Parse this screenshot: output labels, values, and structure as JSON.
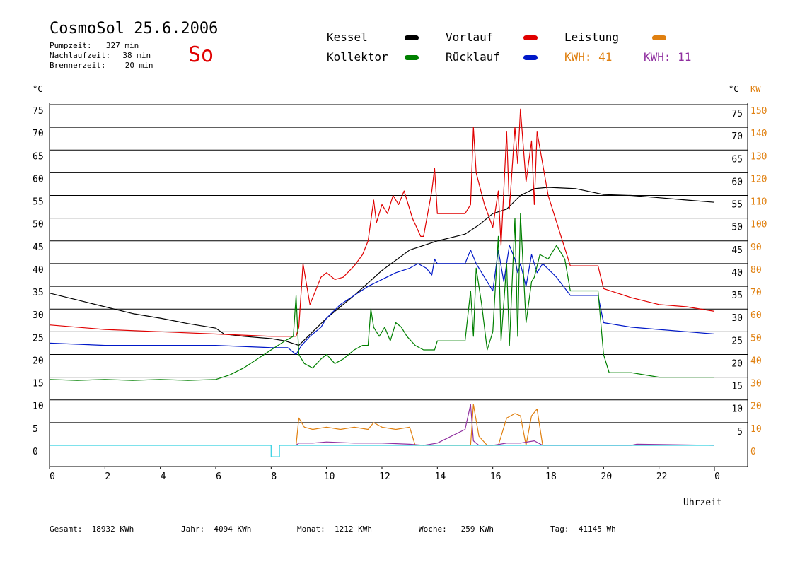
{
  "header": {
    "title": "CosmoSol 25.6.2006",
    "day": "So",
    "stats": [
      {
        "label": "Pumpzeit:",
        "value": "327 min"
      },
      {
        "label": "Nachlaufzeit:",
        "value": "38 min"
      },
      {
        "label": "Brennerzeit:",
        "value": "20 min"
      }
    ]
  },
  "legend": {
    "kessel": "Kessel",
    "kollektor": "Kollektor",
    "vorlauf": "Vorlauf",
    "ruecklauf": "Rücklauf",
    "leistung": "Leistung",
    "kwh1": "KWH: 41",
    "kwh2": "KWH: 11"
  },
  "colors": {
    "kessel": "#000000",
    "kollektor": "#008000",
    "vorlauf": "#e00000",
    "ruecklauf": "#0018c8",
    "leistung": "#e08010",
    "kwh2": "#9030a0",
    "cyan": "#30d0e0"
  },
  "footer": [
    {
      "label": "Gesamt:",
      "value": "18932 KWh"
    },
    {
      "label": "Jahr:",
      "value": "4094 KWh"
    },
    {
      "label": "Monat:",
      "value": "1212 KWh"
    },
    {
      "label": "Woche:",
      "value": "259 KWh"
    },
    {
      "label": "Tag:",
      "value": "41145 Wh"
    }
  ],
  "chart_data": {
    "type": "line",
    "xlabel": "Uhrzeit",
    "ylabel_left": "°C",
    "ylabel_right_temp": "°C",
    "ylabel_right_power": "KW",
    "xlim": [
      0,
      24
    ],
    "ylim": [
      0,
      75
    ],
    "power_lim": [
      0,
      150
    ],
    "x_ticks": [
      "0",
      "2",
      "4",
      "6",
      "8",
      "10",
      "12",
      "14",
      "16",
      "18",
      "20",
      "22",
      "0"
    ],
    "y_ticks_left": [
      0,
      5,
      10,
      15,
      20,
      25,
      30,
      35,
      40,
      45,
      50,
      55,
      60,
      65,
      70,
      75
    ],
    "y_ticks_right": [
      5,
      10,
      15,
      20,
      25,
      30,
      35,
      40,
      45,
      50,
      55,
      60,
      65,
      70,
      75
    ],
    "power_ticks": [
      0,
      10,
      20,
      30,
      40,
      50,
      60,
      70,
      80,
      90,
      100,
      110,
      120,
      130,
      140,
      150
    ],
    "grid": "horizontal",
    "series": [
      {
        "name": "Kessel",
        "key": "kessel",
        "x": [
          0,
          1,
          2,
          3,
          4,
          5,
          6,
          6.3,
          7,
          8,
          8.5,
          9,
          9.5,
          10,
          11,
          12,
          13,
          14,
          15,
          15.5,
          16,
          16.5,
          17,
          17.5,
          18,
          19,
          20,
          21,
          22,
          23,
          24
        ],
        "y": [
          33.5,
          32,
          30.5,
          29,
          28,
          26.8,
          25.8,
          24.5,
          24,
          23.5,
          23,
          22,
          25,
          28,
          33,
          38.5,
          43,
          45,
          46.5,
          48.5,
          51,
          52,
          55,
          56.5,
          56.8,
          56.5,
          55.2,
          55,
          54.5,
          54,
          53.5
        ]
      },
      {
        "name": "Vorlauf",
        "key": "vorlauf",
        "x": [
          0,
          2,
          4,
          6,
          8,
          8.9,
          9.0,
          9.15,
          9.4,
          9.6,
          9.8,
          10,
          10.3,
          10.6,
          11,
          11.3,
          11.5,
          11.7,
          11.8,
          12,
          12.2,
          12.4,
          12.6,
          12.8,
          13.1,
          13.4,
          13.5,
          13.8,
          13.9,
          14,
          14.5,
          15,
          15.2,
          15.3,
          15.4,
          15.7,
          16,
          16.2,
          16.3,
          16.5,
          16.6,
          16.8,
          16.9,
          17,
          17.2,
          17.4,
          17.5,
          17.6,
          18,
          18.8,
          19.8,
          20,
          21,
          22,
          23,
          24
        ],
        "y": [
          26.5,
          25.5,
          25,
          24.5,
          24,
          24,
          26,
          40,
          31,
          34,
          37,
          38,
          36.5,
          37,
          39.5,
          42,
          45,
          54,
          49,
          53,
          51,
          55,
          53,
          56,
          50,
          46,
          46,
          56,
          61,
          51,
          51,
          51,
          53,
          70,
          60,
          53,
          48,
          56,
          44,
          69,
          52,
          70,
          62,
          74,
          58,
          67,
          53,
          69,
          55,
          39.5,
          39.5,
          34.5,
          32.5,
          31,
          30.5,
          29.5
        ]
      },
      {
        "name": "Rücklauf",
        "key": "ruecklauf",
        "x": [
          0,
          2,
          4,
          6,
          8,
          8.6,
          8.9,
          9.1,
          9.4,
          9.8,
          10,
          10.5,
          11,
          11.5,
          12,
          12.5,
          13,
          13.3,
          13.6,
          13.8,
          13.9,
          14,
          15,
          15.2,
          15.4,
          15.7,
          16,
          16.2,
          16.4,
          16.6,
          16.8,
          16.9,
          17,
          17.2,
          17.4,
          17.6,
          17.8,
          18.3,
          18.8,
          19.8,
          20,
          21,
          22,
          23,
          24
        ],
        "y": [
          22.5,
          22,
          22,
          22,
          21.5,
          21.5,
          20,
          22,
          24,
          26,
          28,
          31,
          33,
          35,
          36.5,
          38,
          39,
          40,
          39,
          37.5,
          41,
          40,
          40,
          43,
          40,
          37,
          34,
          43,
          36,
          44,
          41,
          38,
          40,
          35,
          42,
          38,
          40,
          37,
          33,
          33,
          27,
          26,
          25.5,
          25,
          24.5
        ]
      },
      {
        "name": "Kollektor",
        "key": "kollektor",
        "x": [
          0,
          1,
          2,
          3,
          4,
          5,
          6,
          6.5,
          7,
          7.5,
          8,
          8.5,
          8.8,
          8.9,
          9.0,
          9.2,
          9.5,
          9.8,
          10,
          10.3,
          10.6,
          11,
          11.3,
          11.5,
          11.6,
          11.7,
          11.9,
          12.1,
          12.3,
          12.5,
          12.7,
          12.9,
          13.2,
          13.5,
          13.8,
          13.9,
          14,
          15,
          15.2,
          15.3,
          15.4,
          15.6,
          15.8,
          16,
          16.2,
          16.3,
          16.5,
          16.6,
          16.8,
          16.9,
          17,
          17.2,
          17.4,
          17.5,
          17.7,
          18,
          18.3,
          18.6,
          18.8,
          19.8,
          20,
          20.2,
          21,
          22,
          23,
          24
        ],
        "y": [
          14.5,
          14.3,
          14.5,
          14.3,
          14.5,
          14.3,
          14.5,
          15.5,
          17,
          19,
          21,
          23,
          24,
          33,
          20,
          18,
          17,
          19,
          20,
          18,
          19,
          21,
          22,
          22,
          30,
          26,
          24,
          26,
          23,
          27,
          26,
          24,
          22,
          21,
          21,
          21,
          23,
          23,
          34,
          24,
          39,
          31,
          21,
          25,
          46,
          23,
          40,
          22,
          50,
          24,
          51,
          27,
          36,
          37,
          42,
          41,
          44,
          41,
          34,
          34,
          20,
          16,
          16,
          15,
          15,
          15
        ]
      },
      {
        "name": "Leistung",
        "key": "leistung",
        "unit": "KW",
        "x": [
          8.9,
          9.0,
          9.2,
          9.5,
          10,
          10.5,
          11,
          11.5,
          11.7,
          12,
          12.5,
          13,
          13.2,
          13.5,
          14,
          15.2,
          15.3,
          15.5,
          15.8,
          16,
          16.2,
          16.5,
          16.8,
          17,
          17.2,
          17.4,
          17.6,
          17.8
        ],
        "y": [
          0,
          12,
          8,
          7,
          8,
          7,
          8,
          7,
          10,
          8,
          7,
          8,
          0,
          0,
          0,
          0,
          18,
          4,
          0,
          0,
          0,
          12,
          14,
          13,
          0,
          13,
          16,
          0
        ]
      },
      {
        "name": "KWH 11",
        "key": "kwh2",
        "unit": "KW",
        "x": [
          8.9,
          9.0,
          9.5,
          10,
          11,
          12,
          13,
          13.5,
          14,
          15,
          15.2,
          15.3,
          15.5,
          16,
          16.5,
          17,
          17.5,
          17.8,
          18,
          21,
          21.2,
          24
        ],
        "y": [
          0,
          1,
          1,
          1.5,
          1,
          1,
          0.5,
          0,
          1,
          7,
          18,
          2,
          0,
          0,
          1,
          1,
          2,
          0,
          0,
          0,
          0.5,
          0
        ]
      },
      {
        "name": "Cyan",
        "key": "cyan",
        "x": [
          0,
          8,
          8,
          8.3,
          8.3,
          24
        ],
        "y": [
          0,
          0,
          -2.5,
          -2.5,
          0,
          0
        ]
      }
    ]
  }
}
